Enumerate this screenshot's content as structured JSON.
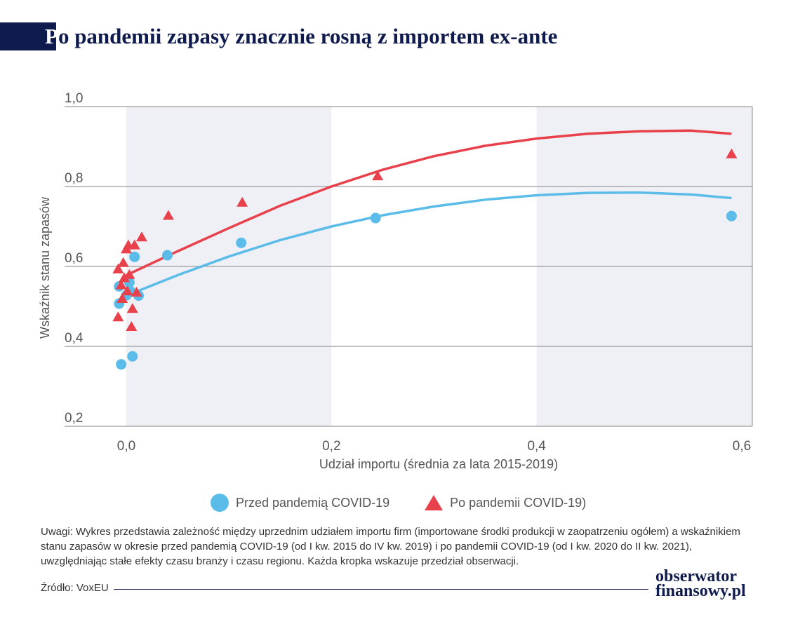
{
  "title": {
    "first_letter": "P",
    "rest": "o pandemii zapasy znacznie rosną z importem ex-ante"
  },
  "chart_data": {
    "type": "scatter",
    "xlabel": "Udział importu (średnia za lata 2015-2019)",
    "ylabel": "Wskaźnik stanu zapasów",
    "xlim": [
      -0.06,
      0.61
    ],
    "ylim": [
      0.2,
      1.0
    ],
    "x_ticks": [
      {
        "v": 0.0,
        "label": "0,0"
      },
      {
        "v": 0.2,
        "label": "0,2"
      },
      {
        "v": 0.4,
        "label": "0,4"
      },
      {
        "v": 0.6,
        "label": "0,6"
      }
    ],
    "y_ticks": [
      {
        "v": 0.2,
        "label": "0,2"
      },
      {
        "v": 0.4,
        "label": "0,4"
      },
      {
        "v": 0.6,
        "label": "0,6"
      },
      {
        "v": 0.8,
        "label": "0,8"
      },
      {
        "v": 1.0,
        "label": "1,0"
      }
    ],
    "shaded_bands": [
      [
        0.0,
        0.2
      ],
      [
        0.4,
        0.61
      ]
    ],
    "series": [
      {
        "name": "Przed pandemią COVID-19",
        "color": "#5bbcea",
        "marker": "circle",
        "points": [
          [
            -0.007,
            0.55
          ],
          [
            -0.007,
            0.507
          ],
          [
            -0.005,
            0.355
          ],
          [
            0.0,
            0.528
          ],
          [
            0.003,
            0.56
          ],
          [
            0.004,
            0.538
          ],
          [
            0.006,
            0.375
          ],
          [
            0.008,
            0.624
          ],
          [
            0.012,
            0.527
          ],
          [
            0.04,
            0.628
          ],
          [
            0.112,
            0.659
          ],
          [
            0.243,
            0.721
          ],
          [
            0.59,
            0.726
          ]
        ],
        "fit": [
          [
            0.0,
            0.527
          ],
          [
            0.05,
            0.578
          ],
          [
            0.1,
            0.625
          ],
          [
            0.15,
            0.666
          ],
          [
            0.2,
            0.7
          ],
          [
            0.25,
            0.728
          ],
          [
            0.3,
            0.75
          ],
          [
            0.35,
            0.767
          ],
          [
            0.4,
            0.778
          ],
          [
            0.45,
            0.784
          ],
          [
            0.5,
            0.785
          ],
          [
            0.55,
            0.78
          ],
          [
            0.59,
            0.771
          ]
        ]
      },
      {
        "name": "Po pandemii COVID-19)",
        "color": "#e8414b",
        "marker": "triangle",
        "points": [
          [
            -0.008,
            0.592
          ],
          [
            -0.008,
            0.472
          ],
          [
            -0.005,
            0.552
          ],
          [
            -0.004,
            0.518
          ],
          [
            -0.003,
            0.608
          ],
          [
            -0.002,
            0.57
          ],
          [
            0.0,
            0.642
          ],
          [
            0.001,
            0.537
          ],
          [
            0.002,
            0.652
          ],
          [
            0.003,
            0.578
          ],
          [
            0.005,
            0.448
          ],
          [
            0.006,
            0.493
          ],
          [
            0.008,
            0.652
          ],
          [
            0.01,
            0.534
          ],
          [
            0.015,
            0.672
          ],
          [
            0.041,
            0.726
          ],
          [
            0.113,
            0.759
          ],
          [
            0.245,
            0.825
          ],
          [
            0.59,
            0.88
          ]
        ],
        "fit": [
          [
            0.0,
            0.578
          ],
          [
            0.05,
            0.638
          ],
          [
            0.1,
            0.696
          ],
          [
            0.15,
            0.752
          ],
          [
            0.2,
            0.8
          ],
          [
            0.25,
            0.842
          ],
          [
            0.3,
            0.876
          ],
          [
            0.35,
            0.902
          ],
          [
            0.4,
            0.92
          ],
          [
            0.45,
            0.932
          ],
          [
            0.5,
            0.938
          ],
          [
            0.55,
            0.94
          ],
          [
            0.59,
            0.932
          ]
        ]
      }
    ],
    "legend_position": "bottom-center"
  },
  "note": "Uwagi: Wykres przedstawia zależność między uprzednim udziałem importu firm (importowane środki produkcji w zaopatrzeniu ogółem) a wskaźnikiem stanu zapasów w okresie przed pandemią COVID-19 (od I kw. 2015 do IV kw. 2019) i po pandemii COVID-19 (od I kw. 2020 do II kw. 2021), uwzględniając stałe efekty czasu branży i czasu regionu. Każda kropka wskazuje przedział obserwacji.",
  "source": "Źródło: VoxEU",
  "logo": {
    "line1": "obserwator",
    "line2": "finansowy.pl"
  }
}
